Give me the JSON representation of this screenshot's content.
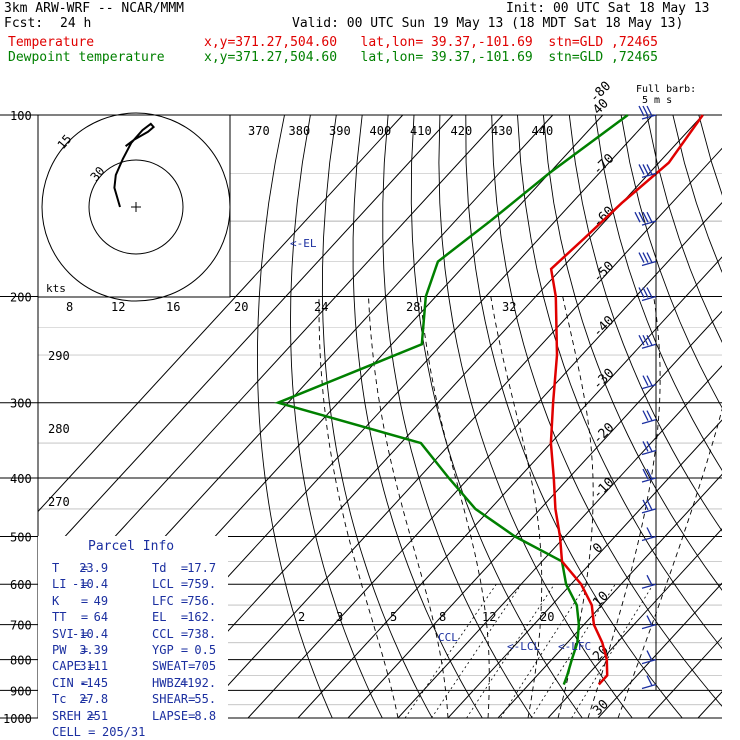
{
  "header": {
    "model": "3km ARW-WRF -- NCAR/MMM",
    "init": "Init: 00 UTC Sat 18 May 13",
    "fcst_label": "Fcst:",
    "fcst_value": "24 h",
    "valid": "Valid: 00 UTC Sun 19 May 13 (18 MDT Sat 18 May 13)"
  },
  "legend": [
    {
      "name": "Temperature",
      "color": "#e00000",
      "info": "x,y=371.27,504.60   lat,lon= 39.37,-101.69  stn=GLD ,72465"
    },
    {
      "name": "Dewpoint temperature",
      "color": "#008000",
      "info": "x,y=371.27,504.60   lat,lon= 39.37,-101.69  stn=GLD ,72465"
    }
  ],
  "barb_title": "Full barb:",
  "barb_units": "5 m s",
  "chart_data": {
    "type": "skew-t",
    "pressure_labels": [
      "100",
      "200",
      "300",
      "400",
      "500",
      "600",
      "700",
      "800",
      "900",
      "1000"
    ],
    "pressure_levels": [
      100,
      200,
      300,
      400,
      500,
      600,
      700,
      800,
      900,
      1000
    ],
    "isotherm_labels": [
      {
        "t": -80,
        "label": "-80"
      },
      {
        "t": -70,
        "label": "-70"
      },
      {
        "t": -60,
        "label": "-60"
      },
      {
        "t": -50,
        "label": "-50"
      },
      {
        "t": -40,
        "label": "-40"
      },
      {
        "t": -30,
        "label": "-30"
      },
      {
        "t": -20,
        "label": "-20"
      },
      {
        "t": -10,
        "label": "-10"
      },
      {
        "t": 0,
        "label": "0"
      },
      {
        "t": 10,
        "label": "10"
      },
      {
        "t": 20,
        "label": "20"
      },
      {
        "t": 30,
        "label": "30"
      },
      {
        "t": 40,
        "label": "40"
      }
    ],
    "theta_labels": [
      "370",
      "380",
      "390",
      "400",
      "410",
      "420",
      "430",
      "440"
    ],
    "theta_side_labels": [
      "290",
      "280",
      "270"
    ],
    "mixing_ratio_labels": [
      "2",
      "3",
      "5",
      "8",
      "12",
      "20"
    ],
    "hodograph": {
      "units": "kts",
      "ring_labels": [
        "8",
        "12",
        "16",
        "20",
        "24",
        "28",
        "32"
      ],
      "circle_labels": [
        "15",
        "30"
      ],
      "trace": [
        [
          0,
          0
        ],
        [
          -2,
          6
        ],
        [
          -4,
          12
        ],
        [
          -3,
          20
        ],
        [
          2,
          30
        ],
        [
          8,
          40
        ],
        [
          16,
          48
        ],
        [
          22,
          52
        ],
        [
          24,
          50
        ],
        [
          20,
          47
        ],
        [
          10,
          42
        ],
        [
          4,
          38
        ]
      ]
    },
    "temperature": [
      {
        "p": 100,
        "t": -60
      },
      {
        "p": 120,
        "t": -58
      },
      {
        "p": 140,
        "t": -60
      },
      {
        "p": 160,
        "t": -61
      },
      {
        "p": 180,
        "t": -62
      },
      {
        "p": 200,
        "t": -56
      },
      {
        "p": 250,
        "t": -45
      },
      {
        "p": 300,
        "t": -37
      },
      {
        "p": 350,
        "t": -30
      },
      {
        "p": 400,
        "t": -23
      },
      {
        "p": 450,
        "t": -17
      },
      {
        "p": 500,
        "t": -11
      },
      {
        "p": 550,
        "t": -6
      },
      {
        "p": 600,
        "t": 2
      },
      {
        "p": 650,
        "t": 8
      },
      {
        "p": 700,
        "t": 12
      },
      {
        "p": 750,
        "t": 17
      },
      {
        "p": 800,
        "t": 21
      },
      {
        "p": 850,
        "t": 24
      },
      {
        "p": 880,
        "t": 24
      }
    ],
    "dewpoint": [
      {
        "p": 100,
        "t": -75
      },
      {
        "p": 125,
        "t": -80
      },
      {
        "p": 150,
        "t": -83
      },
      {
        "p": 175,
        "t": -86
      },
      {
        "p": 200,
        "t": -82
      },
      {
        "p": 240,
        "t": -74
      },
      {
        "p": 300,
        "t": -92
      },
      {
        "p": 350,
        "t": -56
      },
      {
        "p": 400,
        "t": -44
      },
      {
        "p": 450,
        "t": -33
      },
      {
        "p": 500,
        "t": -20
      },
      {
        "p": 550,
        "t": -6
      },
      {
        "p": 600,
        "t": -1
      },
      {
        "p": 650,
        "t": 5
      },
      {
        "p": 700,
        "t": 9
      },
      {
        "p": 750,
        "t": 12
      },
      {
        "p": 800,
        "t": 14
      },
      {
        "p": 850,
        "t": 16
      },
      {
        "p": 880,
        "t": 17
      }
    ],
    "annotations": [
      "<-EL",
      "CCL",
      "<-LCL",
      "<-LFC"
    ],
    "wind_barbs": [
      {
        "p": 100,
        "spd": 30
      },
      {
        "p": 125,
        "spd": 30
      },
      {
        "p": 150,
        "spd": 35
      },
      {
        "p": 175,
        "spd": 30
      },
      {
        "p": 200,
        "spd": 25
      },
      {
        "p": 240,
        "spd": 25
      },
      {
        "p": 280,
        "spd": 20
      },
      {
        "p": 320,
        "spd": 20
      },
      {
        "p": 360,
        "spd": 15
      },
      {
        "p": 400,
        "spd": 15
      },
      {
        "p": 450,
        "spd": 15
      },
      {
        "p": 500,
        "spd": 10
      },
      {
        "p": 600,
        "spd": 10
      },
      {
        "p": 700,
        "spd": 10
      },
      {
        "p": 800,
        "spd": 10
      },
      {
        "p": 880,
        "spd": 10
      }
    ]
  },
  "parcel_info": {
    "title": "Parcel Info",
    "rows": [
      [
        "T   =",
        "23.9",
        "Td  =",
        "17.7"
      ],
      [
        "LI  =",
        "-10.4",
        "LCL =",
        "759."
      ],
      [
        "K   =",
        "49",
        "LFC =",
        "756."
      ],
      [
        "TT  =",
        "64",
        "EL  =",
        "162."
      ],
      [
        "SVI =",
        "-10.4",
        "CCL =",
        "738."
      ],
      [
        "PW  =",
        "3.39",
        "YGP =",
        "0.5"
      ],
      [
        "CAPE =",
        "3111",
        "SWEAT=",
        "705"
      ],
      [
        "CIN =",
        "-145",
        "HWBZ=",
        "4192."
      ],
      [
        "Tc  =",
        "27.8",
        "SHEAR=",
        "55."
      ],
      [
        "SREH =",
        "251",
        "LAPSE=",
        "8.8"
      ]
    ],
    "cell_label": "CELL =",
    "cell_value": "205/31"
  }
}
